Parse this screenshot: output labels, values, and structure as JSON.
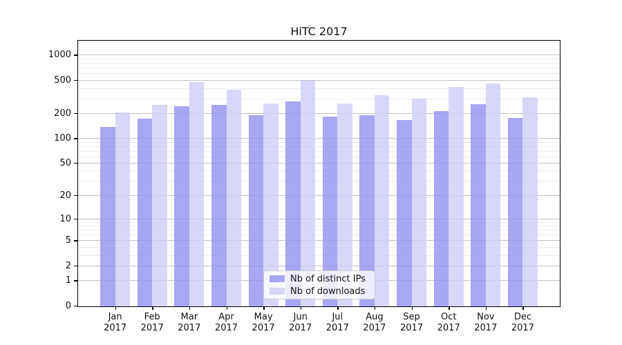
{
  "chart_data": {
    "type": "bar",
    "title": "HiTC 2017",
    "months": [
      "Jan",
      "Feb",
      "Mar",
      "Apr",
      "May",
      "Jun",
      "Jul",
      "Aug",
      "Sep",
      "Oct",
      "Nov",
      "Dec"
    ],
    "year": "2017",
    "categories": [
      "Jan 2017",
      "Feb 2017",
      "Mar 2017",
      "Apr 2017",
      "May 2017",
      "Jun 2017",
      "Jul 2017",
      "Aug 2017",
      "Sep 2017",
      "Oct 2017",
      "Nov 2017",
      "Dec 2017"
    ],
    "series": [
      {
        "name": "Nb of distinct IPs",
        "color": "#a7a7f3",
        "fill": "rgba(145,145,240,0.8)",
        "values": [
          135,
          170,
          240,
          250,
          190,
          275,
          180,
          190,
          166,
          212,
          254,
          176
        ]
      },
      {
        "name": "Nb of downloads",
        "color": "#d7d7f8",
        "fill": "rgba(205,205,246,0.8)",
        "values": [
          205,
          250,
          475,
          380,
          260,
          485,
          262,
          330,
          296,
          410,
          456,
          307
        ]
      }
    ],
    "yscale": "log1p",
    "ylim": [
      0,
      1500
    ],
    "yticks": [
      0,
      1,
      2,
      5,
      10,
      20,
      50,
      100,
      200,
      500,
      1000
    ],
    "minor_gridlines": [
      3,
      4,
      6,
      7,
      8,
      9,
      30,
      40,
      60,
      70,
      80,
      90,
      300,
      400,
      600,
      700,
      800,
      900
    ],
    "grid": {
      "major_color": "#c3c3c3",
      "minor_color": "#ebebeb",
      "major": true,
      "minor": true
    },
    "legend": {
      "position": "lower center",
      "entries": [
        "Nb of distinct IPs",
        "Nb of downloads"
      ]
    },
    "xlabel": "",
    "ylabel": ""
  }
}
